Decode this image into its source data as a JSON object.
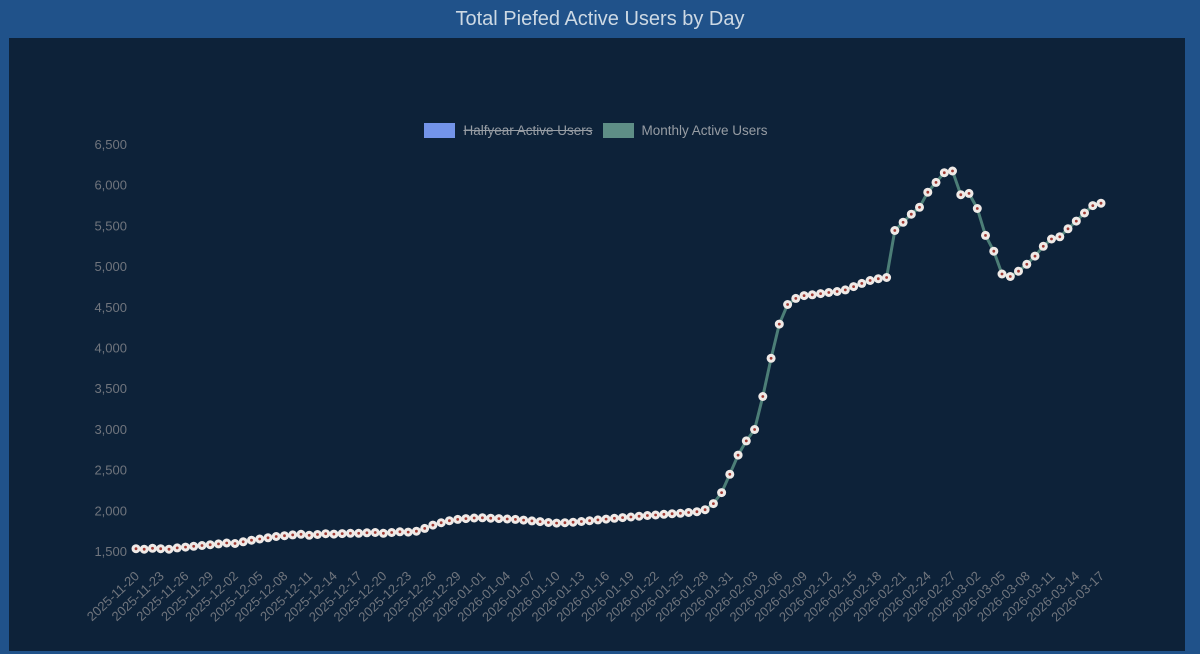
{
  "page": {
    "title": "Total Piefed Active Users by Day"
  },
  "colors": {
    "frame_blue": "#20528a",
    "panel_navy": "#0d2239",
    "title_text": "#cdd9e4",
    "axis_text": "#70757d",
    "legend_text": "#979da4",
    "halfyear_blue": "#7394e9",
    "monthly_teal_swatch": "#5e8e86",
    "monthly_teal_line": "#4c7e77",
    "point_fill": "#efeae7",
    "point_center": "#a03a33"
  },
  "chart_data": {
    "type": "line",
    "title": "Total Piefed Active Users by Day",
    "xlabel": "",
    "ylabel": "",
    "ylim": [
      1500,
      6500
    ],
    "ytick_step": 500,
    "y_tick_labels": [
      "1,500",
      "2,000",
      "2,500",
      "3,000",
      "3,500",
      "4,000",
      "4,500",
      "5,000",
      "5,500",
      "6,000",
      "6,500"
    ],
    "grid": false,
    "legend_position": "top-center",
    "legend": [
      {
        "label": "Halfyear Active Users",
        "color": "#7394e9",
        "hidden": true
      },
      {
        "label": "Monthly Active Users",
        "color": "#5e8e86",
        "hidden": false
      }
    ],
    "x_labels_every": 3,
    "x_tick_labels": [
      "2025-11-20",
      "2025-11-23",
      "2025-11-26",
      "2025-11-29",
      "2025-12-02",
      "2025-12-05",
      "2025-12-08",
      "2025-12-11",
      "2025-12-14",
      "2025-12-17",
      "2025-12-20",
      "2025-12-23",
      "2025-12-26",
      "2025-12-29",
      "2026-01-01",
      "2026-01-04",
      "2026-01-07",
      "2026-01-10",
      "2026-01-13",
      "2026-01-16",
      "2026-01-19",
      "2026-01-22",
      "2026-01-25",
      "2026-01-28",
      "2026-01-31",
      "2026-02-03",
      "2026-02-06",
      "2026-02-09",
      "2026-02-12",
      "2026-02-15",
      "2026-02-18",
      "2026-02-21",
      "2026-02-24",
      "2026-02-27",
      "2026-03-02",
      "2026-03-05",
      "2026-03-08",
      "2026-03-11",
      "2026-03-14",
      "2026-03-17"
    ],
    "series": [
      {
        "name": "Halfyear Active Users",
        "hidden": true,
        "values": []
      },
      {
        "name": "Monthly Active Users",
        "hidden": false,
        "values": [
          1540,
          1535,
          1545,
          1540,
          1535,
          1550,
          1560,
          1570,
          1580,
          1590,
          1600,
          1610,
          1605,
          1625,
          1645,
          1660,
          1675,
          1690,
          1700,
          1710,
          1718,
          1705,
          1715,
          1725,
          1720,
          1726,
          1730,
          1730,
          1736,
          1740,
          1730,
          1740,
          1748,
          1744,
          1755,
          1790,
          1830,
          1860,
          1885,
          1900,
          1910,
          1918,
          1920,
          1915,
          1910,
          1905,
          1900,
          1892,
          1882,
          1874,
          1862,
          1855,
          1860,
          1866,
          1875,
          1884,
          1894,
          1904,
          1914,
          1922,
          1930,
          1940,
          1948,
          1955,
          1963,
          1970,
          1976,
          1985,
          1995,
          2020,
          2095,
          2230,
          2455,
          2690,
          2865,
          3005,
          3410,
          3880,
          4300,
          4540,
          4615,
          4650,
          4660,
          4675,
          4688,
          4700,
          4720,
          4760,
          4800,
          4835,
          4858,
          4872,
          5450,
          5550,
          5650,
          5735,
          5920,
          6040,
          6160,
          6180,
          5890,
          5905,
          5720,
          5390,
          5195,
          4915,
          4885,
          4950,
          5035,
          5135,
          5255,
          5345,
          5372,
          5470,
          5565,
          5665,
          5755,
          5785
        ]
      }
    ]
  }
}
